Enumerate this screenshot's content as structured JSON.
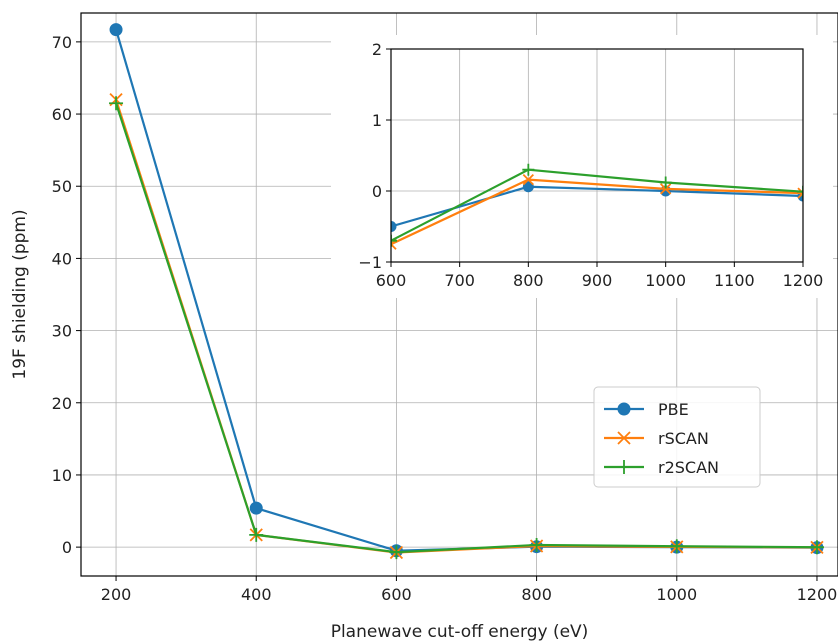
{
  "chart_data": [
    {
      "type": "line",
      "xlabel": "Planewave cut-off energy (eV)",
      "ylabel": "19F shielding (ppm)",
      "x": [
        200,
        400,
        600,
        800,
        1000,
        1200
      ],
      "xlim": [
        150,
        1230
      ],
      "ylim": [
        -4,
        74
      ],
      "xticks": [
        200,
        400,
        600,
        800,
        1000,
        1200
      ],
      "yticks": [
        0,
        10,
        20,
        30,
        40,
        50,
        60,
        70
      ],
      "grid": true,
      "legend": "lower right",
      "series": [
        {
          "name": "PBE",
          "marker": "circle",
          "color": "#1f77b4",
          "values": [
            71.7,
            5.4,
            -0.5,
            0.06,
            0.0,
            -0.07
          ]
        },
        {
          "name": "rSCAN",
          "marker": "x",
          "color": "#ff7f0e",
          "values": [
            62.0,
            1.7,
            -0.75,
            0.16,
            0.03,
            -0.03
          ]
        },
        {
          "name": "r2SCAN",
          "marker": "plus",
          "color": "#2ca02c",
          "values": [
            61.5,
            1.7,
            -0.7,
            0.3,
            0.12,
            -0.01
          ]
        }
      ]
    },
    {
      "type": "line",
      "role": "inset",
      "x": [
        600,
        800,
        1000,
        1200
      ],
      "xlim": [
        600,
        1200
      ],
      "ylim": [
        -1,
        2
      ],
      "xticks": [
        600,
        700,
        800,
        900,
        1000,
        1100,
        1200
      ],
      "yticks": [
        -1,
        0,
        1,
        2
      ],
      "grid": true,
      "series": [
        {
          "name": "PBE",
          "marker": "circle",
          "color": "#1f77b4",
          "values": [
            -0.5,
            0.06,
            0.0,
            -0.07
          ]
        },
        {
          "name": "rSCAN",
          "marker": "x",
          "color": "#ff7f0e",
          "values": [
            -0.75,
            0.16,
            0.03,
            -0.03
          ]
        },
        {
          "name": "r2SCAN",
          "marker": "plus",
          "color": "#2ca02c",
          "values": [
            -0.7,
            0.3,
            0.12,
            -0.01
          ]
        }
      ]
    }
  ]
}
